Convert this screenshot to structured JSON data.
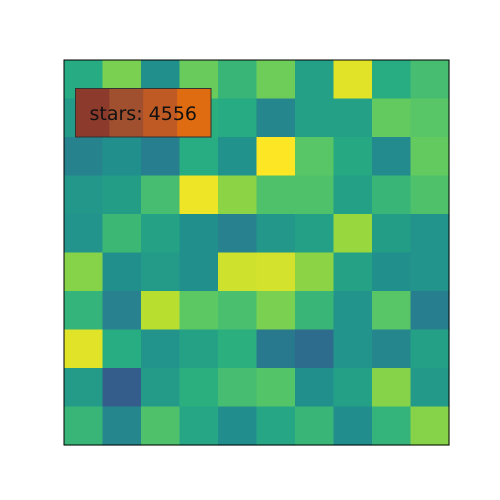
{
  "chart_data": {
    "type": "heatmap",
    "rows": 10,
    "cols": 10,
    "values": [
      [
        0.62,
        0.8,
        0.5,
        0.77,
        0.67,
        0.78,
        0.57,
        0.96,
        0.63,
        0.7
      ],
      [
        0.55,
        0.76,
        0.72,
        0.64,
        0.62,
        0.46,
        0.57,
        0.57,
        0.76,
        0.74
      ],
      [
        0.45,
        0.5,
        0.43,
        0.63,
        0.51,
        1.0,
        0.74,
        0.61,
        0.48,
        0.76
      ],
      [
        0.53,
        0.56,
        0.7,
        0.98,
        0.83,
        0.72,
        0.72,
        0.57,
        0.67,
        0.72
      ],
      [
        0.52,
        0.68,
        0.58,
        0.5,
        0.44,
        0.53,
        0.57,
        0.85,
        0.56,
        0.52
      ],
      [
        0.82,
        0.5,
        0.55,
        0.5,
        0.93,
        0.94,
        0.83,
        0.58,
        0.5,
        0.52
      ],
      [
        0.66,
        0.44,
        0.9,
        0.75,
        0.71,
        0.8,
        0.67,
        0.52,
        0.74,
        0.43
      ],
      [
        0.96,
        0.63,
        0.52,
        0.58,
        0.64,
        0.41,
        0.36,
        0.52,
        0.46,
        0.57
      ],
      [
        0.55,
        0.3,
        0.55,
        0.64,
        0.7,
        0.73,
        0.5,
        0.57,
        0.82,
        0.54
      ],
      [
        0.67,
        0.46,
        0.72,
        0.6,
        0.49,
        0.6,
        0.67,
        0.49,
        0.66,
        0.82
      ]
    ],
    "colormap": "viridis",
    "grid": false,
    "tooltip": {
      "text": "stars: 4556",
      "highlight_row": 1,
      "highlight_col_start": 1,
      "highlight_col_end": 4,
      "colors": [
        "#8b3a2b",
        "#a0502f",
        "#c05a24",
        "#e06c12"
      ]
    }
  }
}
